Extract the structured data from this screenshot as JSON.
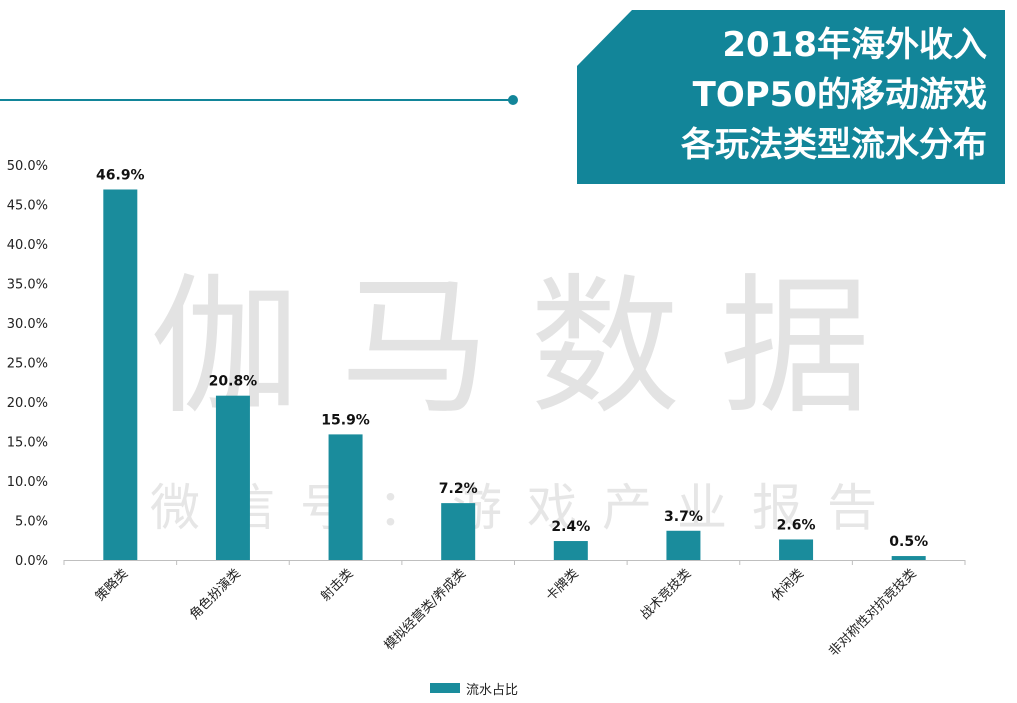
{
  "title": {
    "lines": [
      "2018年海外收入",
      "TOP50的移动游戏",
      "各玩法类型流水分布"
    ]
  },
  "watermark": {
    "big": [
      "伽",
      "马",
      "数",
      "据"
    ],
    "small": [
      "微",
      "信",
      "号",
      "：",
      "游",
      "戏",
      "产",
      "业",
      "报",
      "告"
    ]
  },
  "colors": {
    "accent": "#128599",
    "bar": "#1a8c9c",
    "axis": "#bfbfbf",
    "text": "#222222"
  },
  "chart_data": {
    "type": "bar",
    "categories": [
      "策略类",
      "角色扮演类",
      "射击类",
      "模拟经营类/养成类",
      "卡牌类",
      "战术竞技类",
      "休闲类",
      "非对称性对抗竞技类"
    ],
    "series": [
      {
        "name": "流水占比",
        "values": [
          46.9,
          20.8,
          15.9,
          7.2,
          2.4,
          3.7,
          2.6,
          0.5
        ]
      }
    ],
    "data_labels": [
      "46.9%",
      "20.8%",
      "15.9%",
      "7.2%",
      "2.4%",
      "3.7%",
      "2.6%",
      "0.5%"
    ],
    "yticks": [
      "0.0%",
      "5.0%",
      "10.0%",
      "15.0%",
      "20.0%",
      "25.0%",
      "30.0%",
      "35.0%",
      "40.0%",
      "45.0%",
      "50.0%"
    ],
    "ylim": [
      0,
      50
    ],
    "legend_position": "bottom",
    "grid": false
  }
}
